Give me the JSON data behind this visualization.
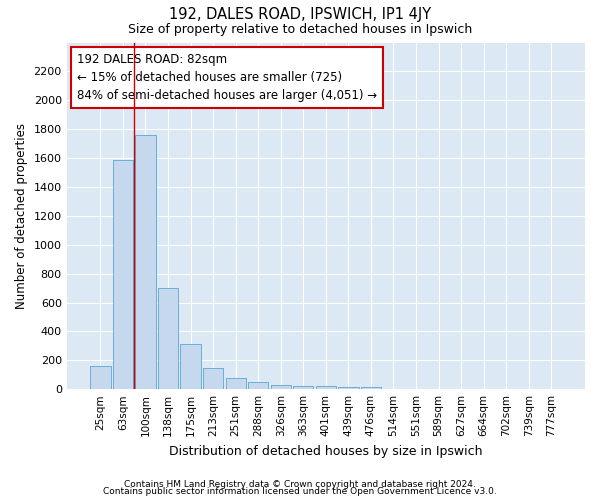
{
  "title1": "192, DALES ROAD, IPSWICH, IP1 4JY",
  "title2": "Size of property relative to detached houses in Ipswich",
  "xlabel": "Distribution of detached houses by size in Ipswich",
  "ylabel": "Number of detached properties",
  "categories": [
    "25sqm",
    "63sqm",
    "100sqm",
    "138sqm",
    "175sqm",
    "213sqm",
    "251sqm",
    "288sqm",
    "326sqm",
    "363sqm",
    "401sqm",
    "439sqm",
    "476sqm",
    "514sqm",
    "551sqm",
    "589sqm",
    "627sqm",
    "664sqm",
    "702sqm",
    "739sqm",
    "777sqm"
  ],
  "values": [
    160,
    1590,
    1760,
    700,
    310,
    150,
    80,
    50,
    30,
    20,
    20,
    15,
    15,
    3,
    3,
    3,
    3,
    3,
    3,
    3,
    3
  ],
  "bar_color": "#c5d8ee",
  "bar_edge_color": "#6baed6",
  "background_color": "#dce9f5",
  "vline_x": 1.5,
  "vline_color": "#cc0000",
  "annotation_text": "192 DALES ROAD: 82sqm\n← 15% of detached houses are smaller (725)\n84% of semi-detached houses are larger (4,051) →",
  "annotation_box_color": "#ffffff",
  "annotation_box_edge": "#cc0000",
  "ylim": [
    0,
    2400
  ],
  "yticks": [
    0,
    200,
    400,
    600,
    800,
    1000,
    1200,
    1400,
    1600,
    1800,
    2000,
    2200
  ],
  "footer1": "Contains HM Land Registry data © Crown copyright and database right 2024.",
  "footer2": "Contains public sector information licensed under the Open Government Licence v3.0."
}
